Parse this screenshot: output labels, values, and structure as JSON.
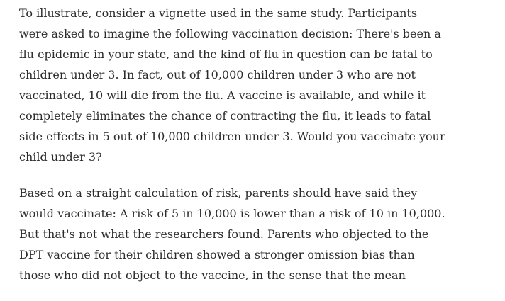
{
  "article": {
    "paragraphs": [
      {
        "lines": [
          "To illustrate, consider a vignette used in the same study. Participants",
          "were asked to imagine the following vaccination decision: There's been a",
          "flu epidemic in your state, and the kind of flu in question can be fatal to",
          "children under 3. In fact, out of 10,000 children under 3 who are not",
          "vaccinated, 10 will die from the flu. A vaccine is available, and while it",
          "completely eliminates the chance of contracting the flu, it leads to fatal",
          "side effects in 5 out of 10,000 children under 3. Would you vaccinate your",
          "child under 3?"
        ]
      },
      {
        "lines": [
          "Based on a straight calculation of risk, parents should have said they",
          "would vaccinate: A risk of 5 in 10,000 is lower than a risk of 10 in 10,000.",
          "But that's not what the researchers found. Parents who objected to the",
          "DPT vaccine for their children showed a stronger omission bias than",
          "those who did not object to the vaccine, in the sense that the mean"
        ]
      }
    ]
  }
}
